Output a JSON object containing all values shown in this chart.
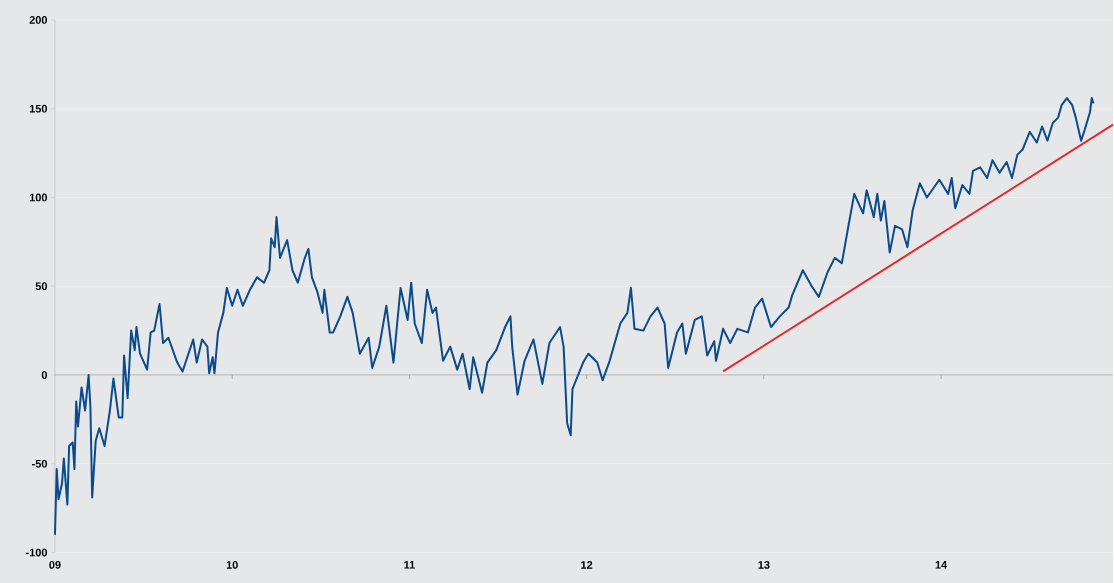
{
  "chart_data": {
    "type": "line",
    "xlim": [
      2009,
      2014.97
    ],
    "ylim": [
      -100,
      200
    ],
    "xticks": [
      {
        "value": 2009,
        "label": "09"
      },
      {
        "value": 2010,
        "label": "10"
      },
      {
        "value": 2011,
        "label": "11"
      },
      {
        "value": 2012,
        "label": "12"
      },
      {
        "value": 2013,
        "label": "13"
      },
      {
        "value": 2014,
        "label": "14"
      }
    ],
    "yticks": [
      -100,
      -50,
      0,
      50,
      100,
      150,
      200
    ],
    "grid": "y",
    "series": [
      {
        "color": "#0b4a8b",
        "x": [
          2009.0,
          2009.01,
          2009.02,
          2009.04,
          2009.05,
          2009.07,
          2009.08,
          2009.1,
          2009.11,
          2009.12,
          2009.13,
          2009.15,
          2009.17,
          2009.19,
          2009.2,
          2009.21,
          2009.23,
          2009.25,
          2009.28,
          2009.31,
          2009.33,
          2009.36,
          2009.38,
          2009.39,
          2009.41,
          2009.43,
          2009.45,
          2009.46,
          2009.48,
          2009.52,
          2009.54,
          2009.56,
          2009.59,
          2009.61,
          2009.64,
          2009.69,
          2009.72,
          2009.74,
          2009.78,
          2009.8,
          2009.83,
          2009.86,
          2009.87,
          2009.89,
          2009.9,
          2009.92,
          2009.95,
          2009.97,
          2010.0,
          2010.03,
          2010.06,
          2010.1,
          2010.14,
          2010.18,
          2010.21,
          2010.22,
          2010.24,
          2010.25,
          2010.27,
          2010.31,
          2010.34,
          2010.37,
          2010.41,
          2010.43,
          2010.45,
          2010.48,
          2010.51,
          2010.52,
          2010.55,
          2010.57,
          2010.61,
          2010.65,
          2010.68,
          2010.72,
          2010.77,
          2010.79,
          2010.83,
          2010.87,
          2010.91,
          2010.95,
          2010.99,
          2011.01,
          2011.03,
          2011.07,
          2011.1,
          2011.13,
          2011.15,
          2011.19,
          2011.23,
          2011.27,
          2011.3,
          2011.34,
          2011.36,
          2011.41,
          2011.44,
          2011.49,
          2011.54,
          2011.57,
          2011.58,
          2011.61,
          2011.65,
          2011.7,
          2011.75,
          2011.79,
          2011.85,
          2011.87,
          2011.89,
          2011.91,
          2011.92,
          2011.98,
          2012.01,
          2012.06,
          2012.09,
          2012.13,
          2012.19,
          2012.23,
          2012.25,
          2012.27,
          2012.32,
          2012.36,
          2012.4,
          2012.44,
          2012.46,
          2012.51,
          2012.54,
          2012.56,
          2012.61,
          2012.65,
          2012.68,
          2012.72,
          2012.73,
          2012.77,
          2012.81,
          2012.85,
          2012.91,
          2012.95,
          2012.99,
          2013.04,
          2013.09,
          2013.14,
          2013.16,
          2013.22,
          2013.27,
          2013.31,
          2013.36,
          2013.4,
          2013.44,
          2013.47,
          2013.51,
          2013.56,
          2013.58,
          2013.62,
          2013.64,
          2013.66,
          2013.68,
          2013.71,
          2013.74,
          2013.78,
          2013.81,
          2013.84,
          2013.88,
          2013.92,
          2013.99,
          2014.04,
          2014.06,
          2014.08,
          2014.12,
          2014.16,
          2014.18,
          2014.22,
          2014.26,
          2014.29,
          2014.33,
          2014.37,
          2014.4,
          2014.43,
          2014.46,
          2014.5,
          2014.54,
          2014.57,
          2014.6,
          2014.63,
          2014.66,
          2014.68,
          2014.71,
          2014.74,
          2014.76,
          2014.79,
          2014.81,
          2014.84,
          2014.85,
          2014.86
        ],
        "values": [
          -90,
          -53,
          -70,
          -61,
          -47,
          -73,
          -40,
          -38,
          -53,
          -15,
          -29,
          -7,
          -20,
          0,
          -18,
          -69,
          -37,
          -30,
          -40,
          -20,
          -2,
          -24,
          -24,
          11,
          -13,
          25,
          14,
          27,
          12,
          3,
          24,
          25,
          40,
          18,
          21,
          7,
          2,
          8,
          20,
          7,
          20,
          16,
          1,
          10,
          1,
          24,
          35,
          49,
          39,
          48,
          39,
          48,
          55,
          52,
          59,
          77,
          72,
          89,
          66,
          76,
          59,
          52,
          66,
          71,
          55,
          47,
          35,
          48,
          24,
          24,
          33,
          44,
          35,
          12,
          21,
          4,
          16,
          39,
          7,
          49,
          31,
          52,
          29,
          18,
          48,
          35,
          38,
          8,
          16,
          3,
          12,
          -8,
          10,
          -10,
          7,
          14,
          27,
          33,
          16,
          -11,
          8,
          20,
          -5,
          18,
          27,
          16,
          -27,
          -34,
          -8,
          7,
          12,
          7,
          -3,
          8,
          29,
          35,
          49,
          26,
          25,
          33,
          38,
          29,
          4,
          24,
          29,
          12,
          31,
          33,
          11,
          19,
          8,
          26,
          18,
          26,
          24,
          38,
          43,
          27,
          33,
          38,
          45,
          59,
          50,
          44,
          58,
          66,
          63,
          80,
          102,
          91,
          104,
          89,
          102,
          87,
          98,
          69,
          84,
          82,
          72,
          93,
          108,
          100,
          110,
          102,
          111,
          94,
          107,
          102,
          115,
          117,
          111,
          121,
          114,
          120,
          111,
          124,
          127,
          137,
          131,
          140,
          132,
          142,
          145,
          152,
          156,
          152,
          145,
          132,
          138,
          148,
          156,
          153
        ]
      },
      {
        "type": "line",
        "color": "#e8262b",
        "x": [
          2012.77,
          2014.97
        ],
        "values": [
          2,
          141
        ]
      }
    ]
  }
}
